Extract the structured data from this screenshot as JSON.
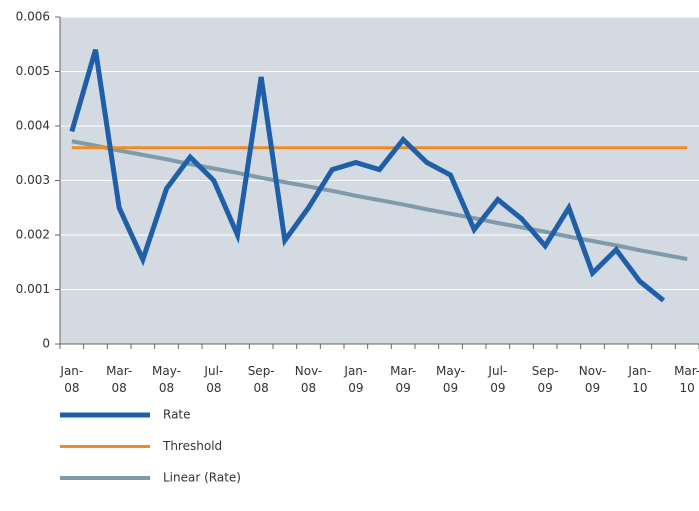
{
  "chart_data": {
    "type": "line",
    "categories": [
      "Jan-08",
      null,
      "Mar-08",
      null,
      "May-08",
      null,
      "Jul-08",
      null,
      "Sep-08",
      null,
      "Nov-08",
      null,
      "Jan-09",
      null,
      "Mar-09",
      null,
      "May-09",
      null,
      "Jul-09",
      null,
      "Sep-09",
      null,
      "Nov-09",
      null,
      "Jan-10",
      null,
      "Mar-10"
    ],
    "series": [
      {
        "name": "Rate",
        "color": "#1f5fa8",
        "values": [
          0.0039,
          0.0054,
          0.0025,
          0.00155,
          0.00285,
          0.00343,
          0.003,
          0.002,
          0.0049,
          0.0019,
          0.0025,
          0.0032,
          0.00333,
          0.0032,
          0.00375,
          0.00333,
          0.0031,
          0.0021,
          0.00265,
          0.0023,
          0.0018,
          0.0025,
          0.0013,
          0.00173,
          0.00115,
          0.0008,
          null
        ]
      },
      {
        "name": "Threshold",
        "color": "#f08a24",
        "values": [
          0.0036,
          0.0036,
          0.0036,
          0.0036,
          0.0036,
          0.0036,
          0.0036,
          0.0036,
          0.0036,
          0.0036,
          0.0036,
          0.0036,
          0.0036,
          0.0036,
          0.0036,
          0.0036,
          0.0036,
          0.0036,
          0.0036,
          0.0036,
          0.0036,
          0.0036,
          0.0036,
          0.0036,
          0.0036,
          0.0036,
          0.0036
        ]
      },
      {
        "name": "Linear (Rate)",
        "color": "#7f9aa8",
        "values": [
          0.00372,
          0.00364,
          0.00355,
          0.00347,
          0.00339,
          0.0033,
          0.00322,
          0.00314,
          0.00305,
          0.00297,
          0.00289,
          0.00281,
          0.00272,
          0.00264,
          0.00256,
          0.00247,
          0.00239,
          0.00231,
          0.00222,
          0.00214,
          0.00206,
          0.00197,
          0.00189,
          0.00181,
          0.00172,
          0.00164,
          0.00156
        ]
      }
    ],
    "ylim": [
      0,
      0.006
    ],
    "yticks": [
      0,
      0.001,
      0.002,
      0.003,
      0.004,
      0.005,
      0.006
    ],
    "grid": true
  }
}
